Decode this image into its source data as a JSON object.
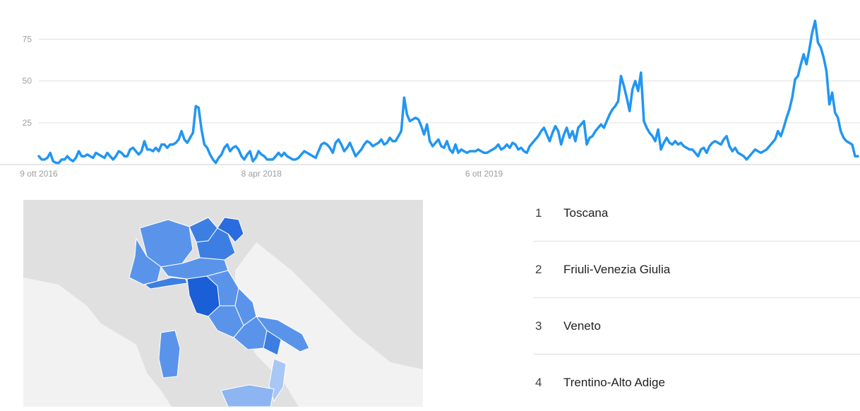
{
  "chart_data": {
    "type": "line",
    "title": "",
    "xlabel": "",
    "ylabel": "",
    "ylim": [
      0,
      90
    ],
    "yticks": [
      25,
      50,
      75
    ],
    "xticks": [
      {
        "label": "9 ott 2016",
        "date": "2016-10-09"
      },
      {
        "label": "8 apr 2018",
        "date": "2018-04-08"
      },
      {
        "label": "6 ott 2019",
        "date": "2019-10-06"
      }
    ],
    "grid": true,
    "color": "#2196f3",
    "x_start": "2016-10-09",
    "x_interval_days": 7,
    "series": [
      {
        "values": [
          5,
          3,
          3,
          4,
          7,
          2,
          1,
          1,
          3,
          3,
          5,
          3,
          2,
          4,
          8,
          5,
          5,
          6,
          5,
          4,
          7,
          6,
          5,
          4,
          7,
          5,
          3,
          5,
          8,
          7,
          5,
          5,
          9,
          10,
          8,
          6,
          8,
          14,
          9,
          9,
          8,
          10,
          8,
          12,
          12,
          10,
          12,
          12,
          13,
          15,
          20,
          15,
          13,
          16,
          19,
          35,
          34,
          21,
          12,
          10,
          6,
          3,
          1,
          4,
          6,
          10,
          12,
          8,
          10,
          11,
          9,
          5,
          3,
          6,
          8,
          2,
          4,
          8,
          6,
          5,
          3,
          3,
          3,
          5,
          7,
          5,
          7,
          5,
          4,
          3,
          3,
          4,
          6,
          8,
          7,
          6,
          5,
          4,
          8,
          12,
          13,
          12,
          10,
          7,
          13,
          15,
          12,
          8,
          10,
          13,
          9,
          5,
          7,
          9,
          12,
          14,
          13,
          11,
          12,
          13,
          15,
          12,
          13,
          16,
          14,
          14,
          17,
          20,
          40,
          30,
          26,
          27,
          28,
          27,
          23,
          18,
          24,
          14,
          11,
          13,
          15,
          11,
          10,
          14,
          9,
          7,
          12,
          7,
          9,
          8,
          7,
          8,
          8,
          8,
          9,
          8,
          7,
          7,
          8,
          9,
          10,
          12,
          9,
          10,
          12,
          10,
          13,
          12,
          9,
          10,
          8,
          7,
          11,
          13,
          15,
          17,
          20,
          22,
          18,
          14,
          19,
          23,
          20,
          12,
          18,
          22,
          16,
          20,
          14,
          22,
          24,
          26,
          12,
          16,
          17,
          20,
          22,
          24,
          22,
          26,
          30,
          33,
          35,
          38,
          53,
          47,
          40,
          32,
          45,
          50,
          44,
          55,
          26,
          22,
          19,
          17,
          14,
          21,
          9,
          13,
          16,
          13,
          12,
          14,
          12,
          13,
          11,
          10,
          9,
          9,
          7,
          5,
          9,
          10,
          7,
          11,
          13,
          14,
          13,
          12,
          15,
          17,
          11,
          8,
          10,
          7,
          6,
          5,
          3,
          5,
          7,
          9,
          8,
          7,
          8,
          9,
          11,
          13,
          15,
          20,
          17,
          22,
          28,
          33,
          40,
          51,
          53,
          60,
          66,
          60,
          69,
          79,
          86,
          73,
          70,
          64,
          56,
          36,
          43,
          31,
          28,
          20,
          16,
          14,
          13,
          12,
          5,
          5
        ]
      }
    ]
  },
  "map": {
    "colors": {
      "background": "#e0e0e0",
      "land": "#f2f2f2",
      "top": "#1a5fd6",
      "high": "#3d7ee3",
      "mid": "#5a94ea",
      "low": "#8db5f1",
      "lowest": "#a9c7f4"
    }
  },
  "ranking": [
    {
      "rank": "1",
      "region": "Toscana"
    },
    {
      "rank": "2",
      "region": "Friuli-Venezia Giulia"
    },
    {
      "rank": "3",
      "region": "Veneto"
    },
    {
      "rank": "4",
      "region": "Trentino-Alto Adige"
    }
  ]
}
